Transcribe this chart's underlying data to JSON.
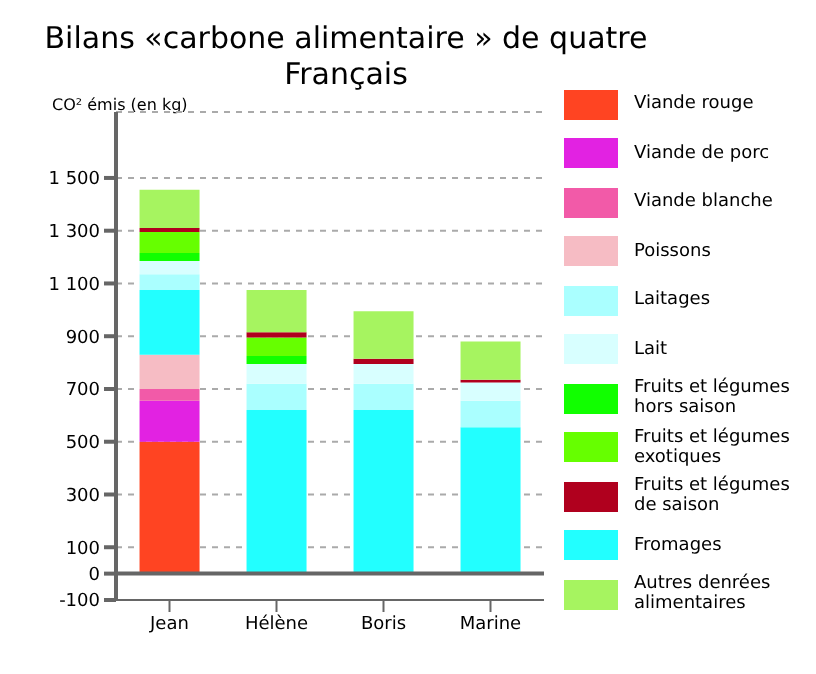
{
  "chart_data": {
    "type": "bar",
    "title": "Bilans «carbone alimentaire » de quatre Français",
    "ylabel": "CO² émis (en kg)",
    "categories": [
      "Jean",
      "Hélène",
      "Boris",
      "Marine"
    ],
    "stacked": true,
    "series": [
      {
        "name": "Viande rouge",
        "color": "#ff4422",
        "values": [
          500,
          0,
          0,
          0
        ]
      },
      {
        "name": "Viande de porc",
        "color": "#e222e2",
        "values": [
          155,
          0,
          0,
          0
        ]
      },
      {
        "name": "Viande blanche",
        "color": "#f25aa8",
        "values": [
          45,
          0,
          0,
          0
        ]
      },
      {
        "name": "Poissons",
        "color": "#f6bcc4",
        "values": [
          130,
          0,
          0,
          0
        ]
      },
      {
        "name": "Fromages",
        "color": "#22ffff",
        "values": [
          245,
          620,
          620,
          555
        ]
      },
      {
        "name": "Laitages",
        "color": "#aaffff",
        "values": [
          60,
          100,
          100,
          100
        ]
      },
      {
        "name": "Lait",
        "color": "#d8ffff",
        "values": [
          50,
          75,
          75,
          70
        ]
      },
      {
        "name": "Fruits et légumes hors saison",
        "color": "#11ff00",
        "values": [
          30,
          30,
          0,
          0
        ]
      },
      {
        "name": "Fruits et légumes exotiques",
        "color": "#66ff00",
        "values": [
          80,
          70,
          0,
          0
        ]
      },
      {
        "name": "Fruits et légumes de saison",
        "color": "#b0001e",
        "values": [
          15,
          20,
          20,
          10
        ]
      },
      {
        "name": "Autres denrées alimentaires",
        "color": "#a6f460",
        "values": [
          145,
          160,
          180,
          145
        ]
      }
    ],
    "ylim": [
      -100,
      1750
    ],
    "yticks": [
      {
        "value": -100,
        "label": "-100"
      },
      {
        "value": 0,
        "label": "0"
      },
      {
        "value": 100,
        "label": "100"
      },
      {
        "value": 300,
        "label": "300"
      },
      {
        "value": 500,
        "label": "500"
      },
      {
        "value": 700,
        "label": "700"
      },
      {
        "value": 900,
        "label": "900"
      },
      {
        "value": 1100,
        "label": "1 100"
      },
      {
        "value": 1300,
        "label": "1 300"
      },
      {
        "value": 1500,
        "label": "1 500"
      }
    ],
    "grid": "y",
    "legend": "right"
  }
}
